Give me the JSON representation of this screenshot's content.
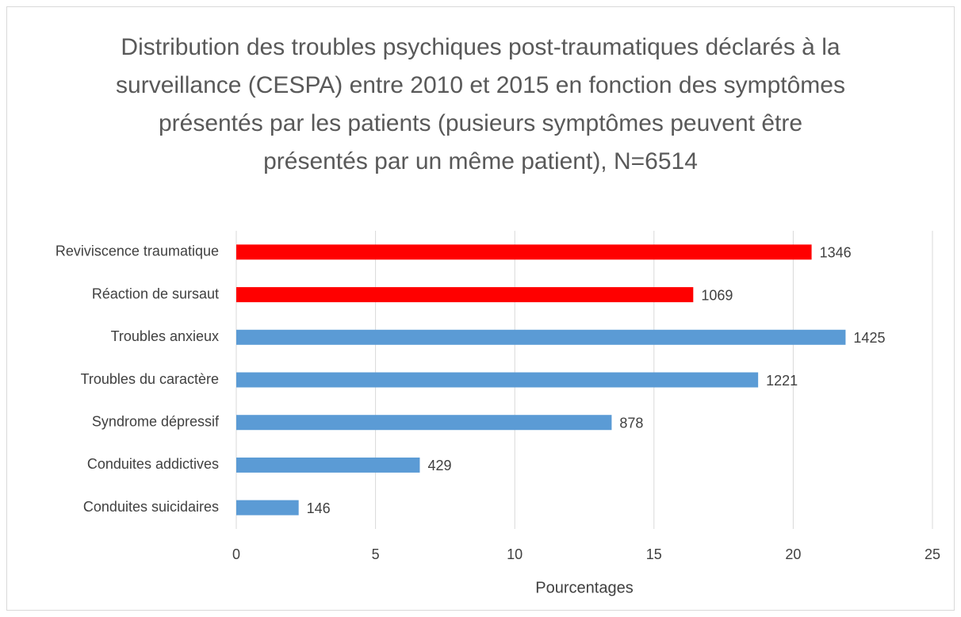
{
  "chart_data": {
    "type": "bar",
    "orientation": "horizontal",
    "title": "Distribution des troubles psychiques post-traumatiques déclarés à la surveillance (CESPA) entre 2010 et 2015 en fonction des symptômes présentés par les patients (pusieurs symptômes peuvent être présentés par un même patient), N=6514",
    "x_label": "Pourcentages",
    "categories": [
      "Reviviscence traumatique",
      "Réaction de sursaut",
      "Troubles anxieux",
      "Troubles du caractère",
      "Syndrome dépressif",
      "Conduites addictives",
      "Conduites suicidaires"
    ],
    "values": [
      20.66,
      16.41,
      21.88,
      18.74,
      13.48,
      6.59,
      2.24
    ],
    "value_labels": [
      "1346",
      "1069",
      "1425",
      "1221",
      "878",
      "429",
      "146"
    ],
    "colors": [
      "#ff0000",
      "#ff0000",
      "#5b9bd5",
      "#5b9bd5",
      "#5b9bd5",
      "#5b9bd5",
      "#5b9bd5"
    ],
    "xlim": [
      0,
      25
    ],
    "xticks": [
      0,
      5,
      10,
      15,
      20,
      25
    ],
    "grid": true
  }
}
